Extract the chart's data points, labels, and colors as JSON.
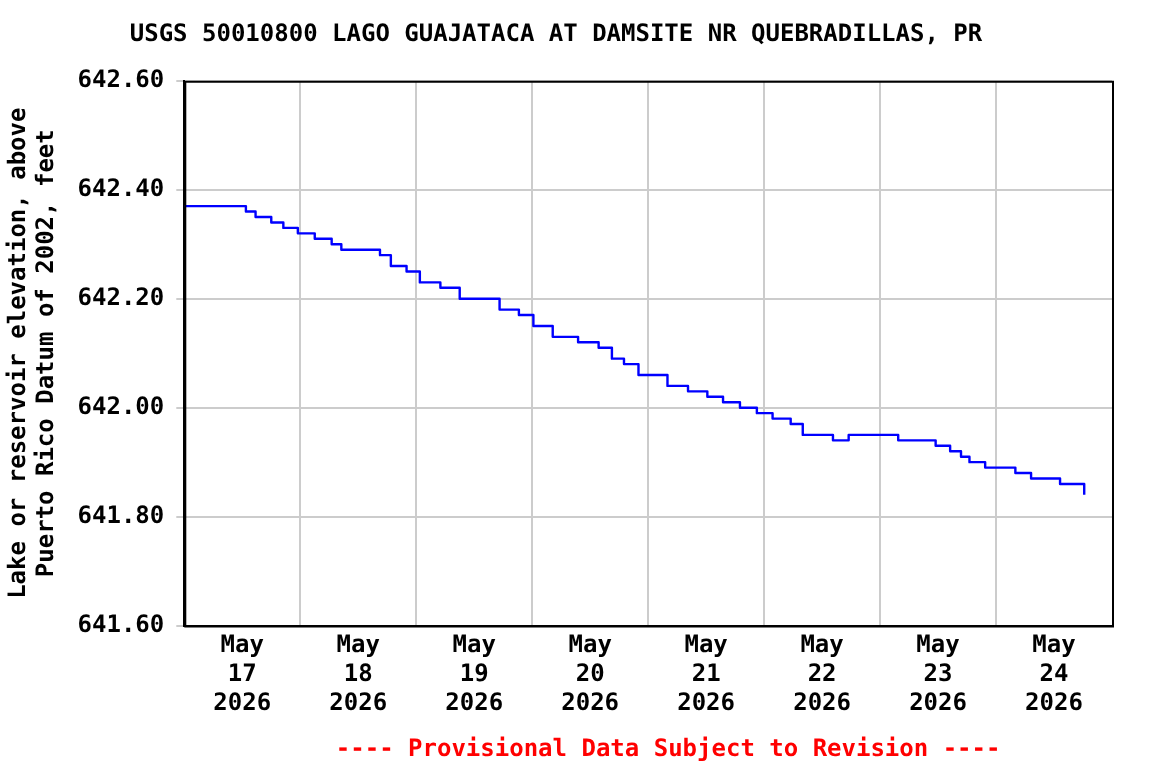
{
  "chart_data": {
    "type": "step",
    "title": "USGS 50010800 LAGO GUAJATACA AT DAMSITE NR QUEBRADILLAS, PR",
    "ylabel": "Lake or reservoir elevation, above\nPuerto Rico Datum of 2002, feet",
    "annotations": [
      "---- Provisional Data Subject to Revision ----"
    ],
    "x": [
      "2026-05-17T00:00",
      "2026-05-17T08:30",
      "2026-05-17T12:45",
      "2026-05-17T14:45",
      "2026-05-17T18:00",
      "2026-05-17T20:30",
      "2026-05-17T23:30",
      "2026-05-18T03:00",
      "2026-05-18T06:30",
      "2026-05-18T08:30",
      "2026-05-18T14:30",
      "2026-05-18T16:30",
      "2026-05-18T18:45",
      "2026-05-18T22:00",
      "2026-05-19T00:45",
      "2026-05-19T05:00",
      "2026-05-19T09:00",
      "2026-05-19T15:15",
      "2026-05-19T17:15",
      "2026-05-19T21:15",
      "2026-05-20T00:15",
      "2026-05-20T04:15",
      "2026-05-20T09:30",
      "2026-05-20T13:45",
      "2026-05-20T16:30",
      "2026-05-20T19:00",
      "2026-05-20T22:00",
      "2026-05-21T00:45",
      "2026-05-21T04:00",
      "2026-05-21T08:15",
      "2026-05-21T12:15",
      "2026-05-21T15:30",
      "2026-05-21T19:00",
      "2026-05-21T22:30",
      "2026-05-22T01:45",
      "2026-05-22T05:30",
      "2026-05-22T08:00",
      "2026-05-22T12:00",
      "2026-05-22T14:15",
      "2026-05-22T16:15",
      "2026-05-22T17:30",
      "2026-05-23T02:30",
      "2026-05-23T03:45",
      "2026-05-23T08:30",
      "2026-05-23T11:30",
      "2026-05-23T14:30",
      "2026-05-23T16:45",
      "2026-05-23T18:30",
      "2026-05-23T21:45",
      "2026-05-24T01:45",
      "2026-05-24T04:00",
      "2026-05-24T07:15",
      "2026-05-24T11:00",
      "2026-05-24T13:15",
      "2026-05-24T16:15",
      "2026-05-24T18:15"
    ],
    "series": [
      {
        "color": "#0000ff",
        "values": [
          642.37,
          642.37,
          642.36,
          642.35,
          642.34,
          642.33,
          642.32,
          642.31,
          642.3,
          642.29,
          642.29,
          642.28,
          642.26,
          642.25,
          642.23,
          642.22,
          642.2,
          642.2,
          642.18,
          642.17,
          642.15,
          642.13,
          642.12,
          642.11,
          642.09,
          642.08,
          642.06,
          642.06,
          642.04,
          642.03,
          642.02,
          642.01,
          642.0,
          641.99,
          641.98,
          641.97,
          641.95,
          641.95,
          641.94,
          641.94,
          641.95,
          641.95,
          641.94,
          641.94,
          641.93,
          641.92,
          641.91,
          641.9,
          641.89,
          641.89,
          641.88,
          641.87,
          641.87,
          641.86,
          641.86,
          641.84
        ]
      }
    ],
    "xlim": [
      "2026-05-17T00:00",
      "2026-05-25T00:00"
    ],
    "xticks": [
      {
        "value": "2026-05-17T12:00",
        "label": "May\n17\n2026"
      },
      {
        "value": "2026-05-18T00:00",
        "label": null
      },
      {
        "value": "2026-05-18T12:00",
        "label": "May\n18\n2026"
      },
      {
        "value": "2026-05-19T00:00",
        "label": null
      },
      {
        "value": "2026-05-19T12:00",
        "label": "May\n19\n2026"
      },
      {
        "value": "2026-05-20T00:00",
        "label": null
      },
      {
        "value": "2026-05-20T12:00",
        "label": "May\n20\n2026"
      },
      {
        "value": "2026-05-21T00:00",
        "label": null
      },
      {
        "value": "2026-05-21T12:00",
        "label": "May\n21\n2026"
      },
      {
        "value": "2026-05-22T00:00",
        "label": null
      },
      {
        "value": "2026-05-22T12:00",
        "label": "May\n22\n2026"
      },
      {
        "value": "2026-05-23T00:00",
        "label": null
      },
      {
        "value": "2026-05-23T12:00",
        "label": "May\n23\n2026"
      },
      {
        "value": "2026-05-24T00:00",
        "label": null
      },
      {
        "value": "2026-05-24T12:00",
        "label": "May\n24\n2026"
      }
    ],
    "ylim": [
      641.6,
      642.6
    ],
    "yticks": [
      {
        "value": 641.6,
        "label": "641.60"
      },
      {
        "value": 641.8,
        "label": "641.80"
      },
      {
        "value": 642.0,
        "label": "642.00"
      },
      {
        "value": 642.2,
        "label": "642.20"
      },
      {
        "value": 642.4,
        "label": "642.40"
      },
      {
        "value": 642.6,
        "label": "642.60"
      }
    ],
    "grid": true,
    "legend": false,
    "marker": "none",
    "line_style": "solid"
  }
}
